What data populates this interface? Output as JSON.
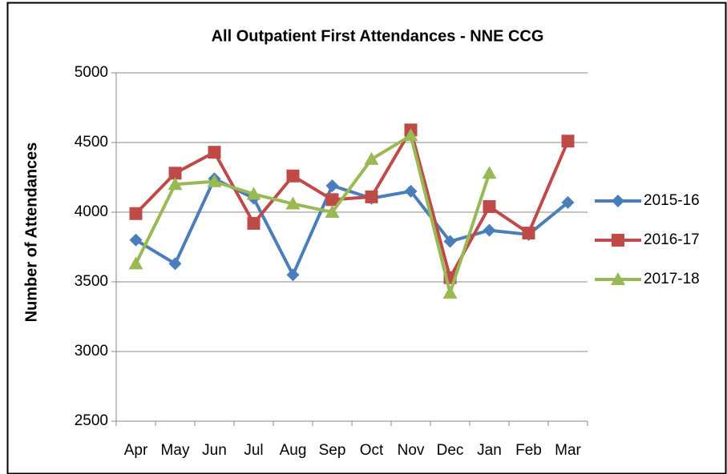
{
  "chart_data": {
    "type": "line",
    "title": "All Outpatient First Attendances - NNE CCG",
    "y_label": "Number of Attendances",
    "categories": [
      "Apr",
      "May",
      "Jun",
      "Jul",
      "Aug",
      "Sep",
      "Oct",
      "Nov",
      "Dec",
      "Jan",
      "Feb",
      "Mar"
    ],
    "series": [
      {
        "name": "2015-16",
        "color": "#4a7ebb",
        "marker": "diamond",
        "values": [
          3800,
          3630,
          4240,
          4100,
          3550,
          4190,
          4100,
          4150,
          3790,
          3870,
          3840,
          4070
        ]
      },
      {
        "name": "2016-17",
        "color": "#be4b48",
        "marker": "square",
        "values": [
          3990,
          4280,
          4430,
          3920,
          4260,
          4090,
          4110,
          4590,
          3530,
          4040,
          3850,
          4510
        ]
      },
      {
        "name": "2017-18",
        "color": "#98b954",
        "marker": "triangle",
        "values": [
          3630,
          4200,
          4220,
          4130,
          4060,
          4000,
          4380,
          4550,
          3420,
          4280,
          null,
          null
        ]
      }
    ],
    "ylim": [
      2500,
      5000
    ],
    "yticks": [
      2500,
      3000,
      3500,
      4000,
      4500,
      5000
    ],
    "grid": true,
    "legend": "right"
  }
}
